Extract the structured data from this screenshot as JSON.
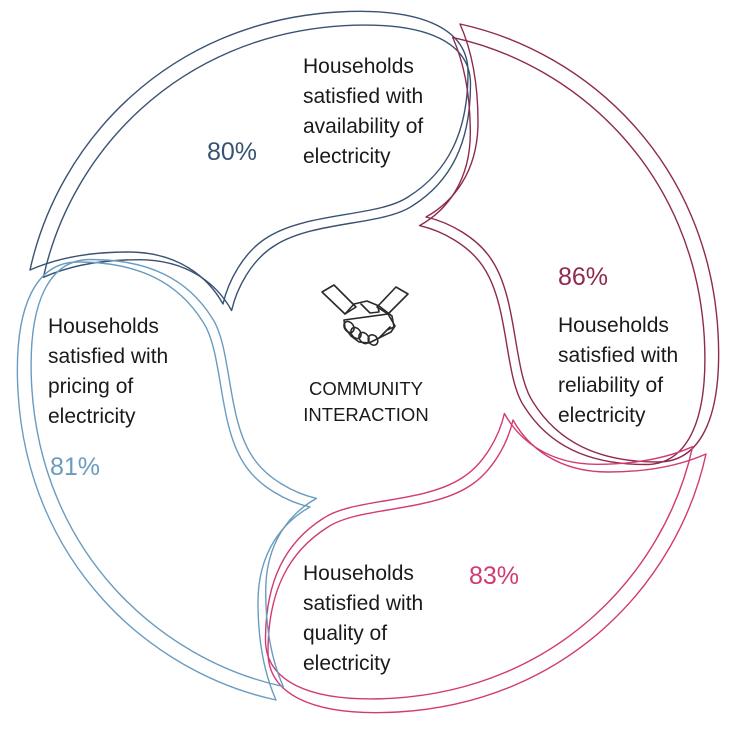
{
  "diagram": {
    "center": {
      "icon": "handshake-icon",
      "label": "COMMUNITY\nINTERACTION"
    },
    "segments": [
      {
        "id": "availability",
        "percent": "80%",
        "description": "Households\nsatisfied with\navailability of\nelectricity",
        "color": "#3a5272"
      },
      {
        "id": "reliability",
        "percent": "86%",
        "description": "Households\nsatisfied with\nreliability of\nelectricity",
        "color": "#8e2a4f"
      },
      {
        "id": "quality",
        "percent": "83%",
        "description": "Households\nsatisfied with\nquality of\nelectricity",
        "color": "#d23a74"
      },
      {
        "id": "pricing",
        "percent": "81%",
        "description": "Households\nsatisfied with\npricing of\nelectricity",
        "color": "#6a9cbf"
      }
    ]
  }
}
